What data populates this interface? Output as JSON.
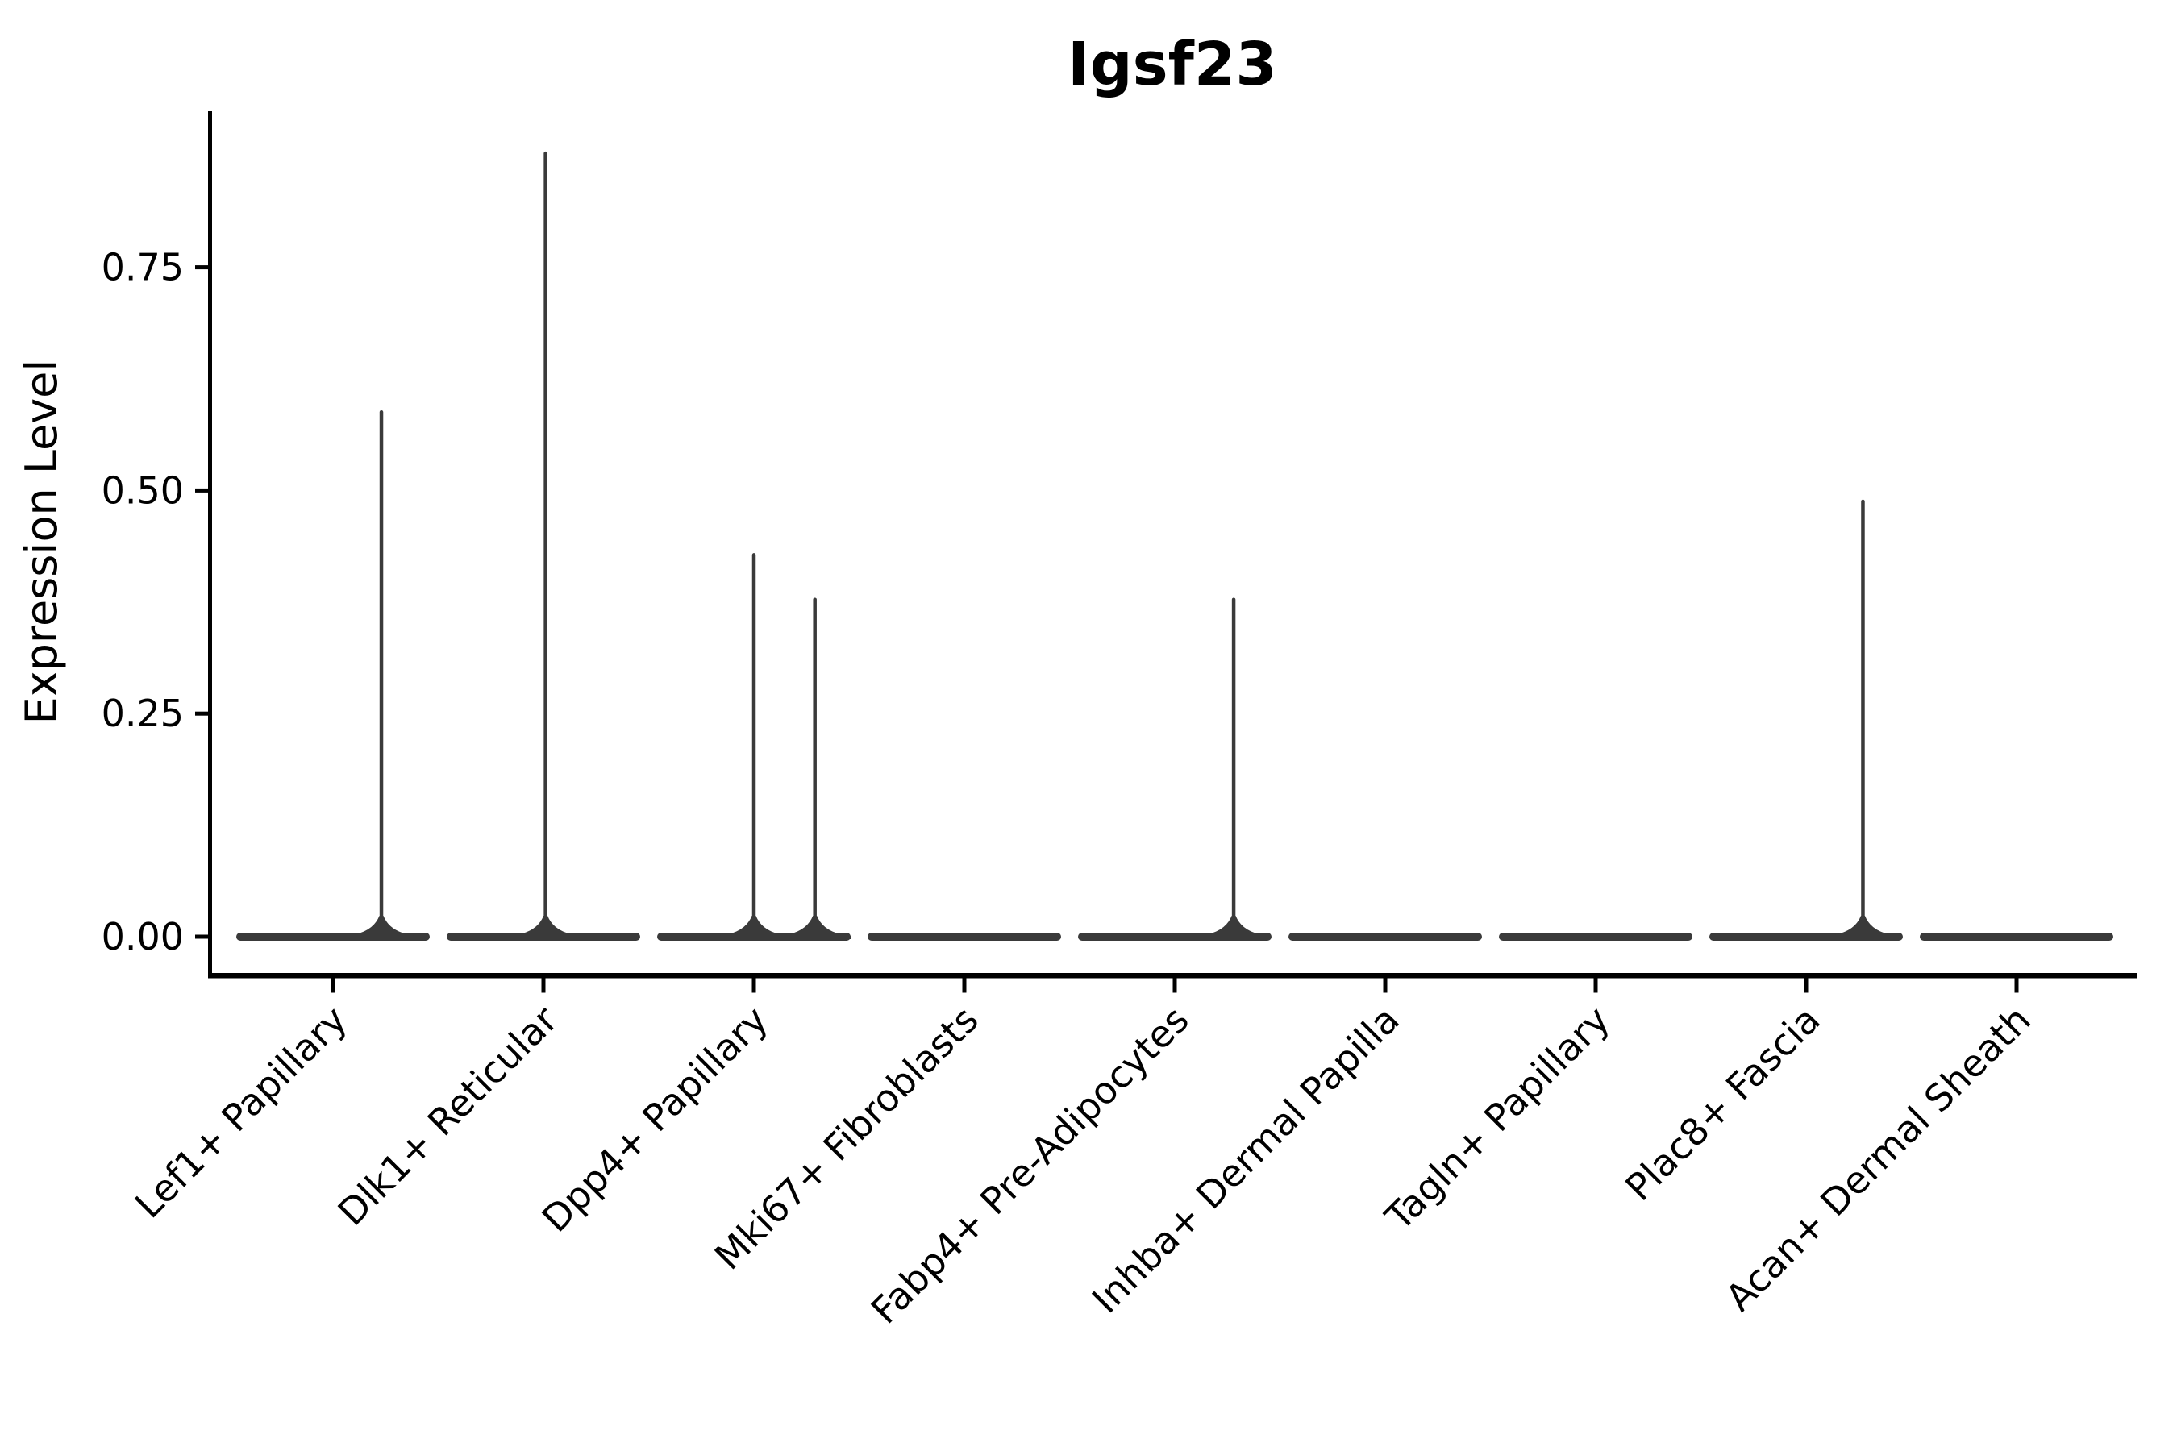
{
  "title": "Igsf23",
  "colors": {
    "background": "#ffffff",
    "violin": "#3a3a3a",
    "axis": "#000000",
    "text": "#000000"
  },
  "chart_data": {
    "type": "violin",
    "title": "Igsf23",
    "xlabel": "",
    "ylabel": "Expression Level",
    "ylim": [
      -0.04,
      0.92
    ],
    "yticks": [
      0.0,
      0.25,
      0.5,
      0.75
    ],
    "ytick_labels": [
      "0.00",
      "0.25",
      "0.50",
      "0.75"
    ],
    "grid": false,
    "legend": "none",
    "xtick_rotation": 45,
    "categories": [
      "Lef1+ Papillary",
      "Dlk1+ Reticular",
      "Dpp4+ Papillary",
      "Mki67+ Fibroblasts",
      "Fabp4+ Pre-Adipocytes",
      "Inhba+ Dermal Papilla",
      "Tagln+ Papillary",
      "Plac8+ Fascia",
      "Acan+ Dermal Sheath"
    ],
    "series": [
      {
        "name": "Lef1+ Papillary",
        "baseline_value": 0,
        "max_expression": 0.59,
        "spikes": [
          {
            "value": 0.59,
            "x_offset": 0.23
          }
        ]
      },
      {
        "name": "Dlk1+ Reticular",
        "baseline_value": 0,
        "max_expression": 0.88,
        "spikes": [
          {
            "value": 0.88,
            "x_offset": 0.01
          }
        ]
      },
      {
        "name": "Dpp4+ Papillary",
        "baseline_value": 0,
        "max_expression": 0.43,
        "spikes": [
          {
            "value": 0.43,
            "x_offset": 0.0
          },
          {
            "value": 0.38,
            "x_offset": 0.29
          }
        ]
      },
      {
        "name": "Mki67+ Fibroblasts",
        "baseline_value": 0,
        "max_expression": 0.0,
        "spikes": []
      },
      {
        "name": "Fabp4+ Pre-Adipocytes",
        "baseline_value": 0,
        "max_expression": 0.38,
        "spikes": [
          {
            "value": 0.38,
            "x_offset": 0.28
          }
        ]
      },
      {
        "name": "Inhba+ Dermal Papilla",
        "baseline_value": 0,
        "max_expression": 0.0,
        "spikes": []
      },
      {
        "name": "Tagln+ Papillary",
        "baseline_value": 0,
        "max_expression": 0.0,
        "spikes": []
      },
      {
        "name": "Plac8+ Fascia",
        "baseline_value": 0,
        "max_expression": 0.49,
        "spikes": [
          {
            "value": 0.49,
            "x_offset": 0.27
          }
        ]
      },
      {
        "name": "Acan+ Dermal Sheath",
        "baseline_value": 0,
        "max_expression": 0.0,
        "spikes": []
      }
    ]
  }
}
